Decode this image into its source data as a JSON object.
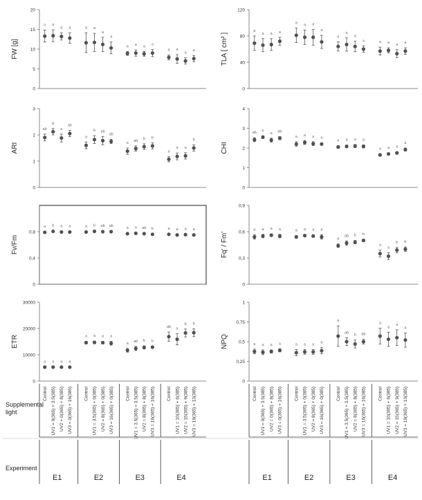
{
  "colors": {
    "marker": "#505050",
    "errorbar": "#555555",
    "letters": "#666666",
    "axis": "#888888",
    "frame": "#444444"
  },
  "side_label": "Supplemental light",
  "experiment_label": "Experiment",
  "experiments": [
    "E1",
    "E2",
    "E3",
    "E4"
  ],
  "conditions": [
    [
      "Control",
      "UV1 = 0(365) + 3.5(385)",
      "UV2 = 0(365) + 8(385)",
      "UV3 = 0(365) + 16(385)"
    ],
    [
      "Control",
      "UV1 = 3.5(365) + 0(385)",
      "UV2 = 8(365) + 0(385)",
      "UV3 = 16(365) + 0(385)"
    ],
    [
      "Control",
      "UV1 = 3.5(365) + 3.5(385)",
      "UV2 = 8(365) + 8(385)",
      "UV3 = 16(365) + 16(385)"
    ],
    [
      "Control",
      "UV1 = 10(365) + 6(385)",
      "UV2 = 15(365) + 9(385)",
      "UV3 = 19(365) + 13(385)"
    ]
  ],
  "chart_data": [
    {
      "type": "scatter",
      "ylabel": "FW [g]",
      "ylim": [
        0,
        20
      ],
      "ticks": [
        "0",
        "5",
        "10",
        "15",
        "20"
      ],
      "values": [
        [
          13.3,
          13.4,
          13.2,
          12.8
        ],
        [
          11.6,
          11.7,
          11.2,
          10.3
        ],
        [
          8.9,
          9.0,
          8.8,
          9.0
        ],
        [
          7.9,
          7.5,
          7.0,
          7.6
        ]
      ],
      "errors": [
        [
          1.5,
          1.5,
          0.9,
          1.3
        ],
        [
          2.5,
          2.3,
          1.8,
          1.5
        ],
        [
          0.5,
          0.8,
          0.6,
          0.9
        ],
        [
          0.6,
          1.1,
          0.8,
          0.8
        ]
      ],
      "letters": [
        [
          "a",
          "a",
          "a",
          "a"
        ],
        [
          "a",
          "a",
          "a",
          "a"
        ],
        [
          "a",
          "a",
          "a",
          "a"
        ],
        [
          "a",
          "a",
          "a",
          "a"
        ]
      ]
    },
    {
      "type": "scatter",
      "ylabel": "TLA [ cm² ]",
      "ylim": [
        0,
        120
      ],
      "ticks": [
        "0",
        "40",
        "80",
        "120"
      ],
      "values": [
        [
          69,
          66,
          67,
          72
        ],
        [
          81,
          78,
          78,
          71
        ],
        [
          64,
          67,
          64,
          60
        ],
        [
          57,
          58,
          53,
          57
        ]
      ],
      "errors": [
        [
          11,
          10,
          9,
          6
        ],
        [
          11,
          11,
          12,
          10
        ],
        [
          7,
          10,
          8,
          5
        ],
        [
          6,
          4,
          6,
          5
        ]
      ],
      "letters": [
        [
          "a",
          "a",
          "a",
          "a"
        ],
        [
          "a",
          "a",
          "a",
          "a"
        ],
        [
          "a",
          "a",
          "a",
          "a"
        ],
        [
          "a",
          "a",
          "a",
          "a"
        ]
      ]
    },
    {
      "type": "scatter",
      "ylabel": "ARI",
      "ylim": [
        0,
        3
      ],
      "ticks": [
        "0",
        "1",
        "2",
        "3"
      ],
      "values": [
        [
          1.9,
          2.12,
          1.88,
          2.05
        ],
        [
          1.6,
          1.82,
          1.78,
          1.75
        ],
        [
          1.38,
          1.48,
          1.55,
          1.58
        ],
        [
          1.07,
          1.18,
          1.2,
          1.5
        ]
      ],
      "errors": [
        [
          0.13,
          0.12,
          0.15,
          0.12
        ],
        [
          0.13,
          0.15,
          0.16,
          0.08
        ],
        [
          0.12,
          0.1,
          0.11,
          0.12
        ],
        [
          0.1,
          0.13,
          0.12,
          0.12
        ]
      ],
      "letters": [
        [
          "ab",
          "b",
          "a",
          "ab"
        ],
        [
          "a",
          "b",
          "ab",
          "ab"
        ],
        [
          "a",
          "ab",
          "b",
          "b"
        ],
        [
          "a",
          "a",
          "a",
          "b"
        ]
      ]
    },
    {
      "type": "scatter",
      "ylabel": "CHI",
      "ylim": [
        0,
        4
      ],
      "ticks": [
        "0",
        "1",
        "2",
        "3",
        "4"
      ],
      "values": [
        [
          2.42,
          2.55,
          2.4,
          2.5
        ],
        [
          2.2,
          2.28,
          2.22,
          2.2
        ],
        [
          2.05,
          2.08,
          2.1,
          2.08
        ],
        [
          1.65,
          1.7,
          1.75,
          1.92
        ]
      ],
      "errors": [
        [
          0.1,
          0.07,
          0.1,
          0.08
        ],
        [
          0.12,
          0.1,
          0.1,
          0.06
        ],
        [
          0.07,
          0.07,
          0.08,
          0.08
        ],
        [
          0.06,
          0.06,
          0.06,
          0.08
        ]
      ],
      "letters": [
        [
          "ab",
          "b",
          "a",
          "ab"
        ],
        [
          "a",
          "a",
          "a",
          "a"
        ],
        [
          "a",
          "a",
          "a",
          "a"
        ],
        [
          "a",
          "a",
          "a",
          "a"
        ]
      ]
    },
    {
      "type": "scatter",
      "ylabel": "Fv/Fm",
      "ylim": [
        0,
        1.2
      ],
      "ticks": [
        "0",
        "0,4",
        "0,8"
      ],
      "values": [
        [
          0.79,
          0.805,
          0.795,
          0.795
        ],
        [
          0.795,
          0.805,
          0.8,
          0.8
        ],
        [
          0.77,
          0.775,
          0.77,
          0.76
        ],
        [
          0.76,
          0.75,
          0.755,
          0.75
        ]
      ],
      "errors": [
        [
          0.01,
          0.01,
          0.01,
          0.01
        ],
        [
          0.01,
          0.01,
          0.01,
          0.01
        ],
        [
          0.01,
          0.01,
          0.01,
          0.01
        ],
        [
          0.01,
          0.01,
          0.01,
          0.01
        ]
      ],
      "letters": [
        [
          "a",
          "b",
          "a",
          "a"
        ],
        [
          "a",
          "b",
          "ab",
          "ab"
        ],
        [
          "a",
          "a",
          "ab",
          "b"
        ],
        [
          "a",
          "a",
          "a",
          "a"
        ]
      ]
    },
    {
      "type": "scatter",
      "ylabel": "Fq' / Fm'",
      "ylim": [
        0,
        0.9
      ],
      "ticks": [
        "0",
        "0,3",
        "0,6",
        "0,9"
      ],
      "values": [
        [
          0.54,
          0.55,
          0.56,
          0.55
        ],
        [
          0.54,
          0.555,
          0.55,
          0.54
        ],
        [
          0.44,
          0.47,
          0.48,
          0.5
        ],
        [
          0.35,
          0.32,
          0.39,
          0.4
        ]
      ],
      "errors": [
        [
          0.025,
          0.02,
          0.015,
          0.02
        ],
        [
          0.015,
          0.015,
          0.015,
          0.025
        ],
        [
          0.02,
          0.025,
          0.02,
          0.015
        ],
        [
          0.04,
          0.04,
          0.03,
          0.025
        ]
      ],
      "letters": [
        [
          "a",
          "a",
          "a",
          "a"
        ],
        [
          "a",
          "a",
          "a",
          "a"
        ],
        [
          "a",
          "ab",
          "b",
          "b"
        ],
        [
          "a",
          "a",
          "b",
          "b"
        ]
      ]
    },
    {
      "type": "scatter",
      "ylabel": "ETR",
      "ylim": [
        0,
        30000
      ],
      "ticks": [
        "0",
        "10000",
        "20000",
        "30000"
      ],
      "values": [
        [
          5300,
          5300,
          5300,
          5300
        ],
        [
          14600,
          14700,
          14600,
          14400
        ],
        [
          11700,
          12400,
          12800,
          12900
        ],
        [
          16900,
          15900,
          18300,
          18400
        ]
      ],
      "errors": [
        [
          150,
          150,
          150,
          150
        ],
        [
          500,
          500,
          500,
          700
        ],
        [
          700,
          800,
          600,
          400
        ],
        [
          1800,
          2100,
          1500,
          1500
        ]
      ],
      "letters": [
        [
          "a",
          "a",
          "a",
          "a"
        ],
        [
          "a",
          "a",
          "a",
          "a"
        ],
        [
          "a",
          "ab",
          "b",
          "b"
        ],
        [
          "ab",
          "a",
          "b",
          "b"
        ]
      ]
    },
    {
      "type": "scatter",
      "ylabel": "NPQ",
      "ylim": [
        0,
        1
      ],
      "ticks": [
        "0",
        "0,25",
        "0,5",
        "0,75",
        "1"
      ],
      "values": [
        [
          0.375,
          0.365,
          0.375,
          0.39
        ],
        [
          0.36,
          0.37,
          0.37,
          0.385
        ],
        [
          0.57,
          0.5,
          0.47,
          0.5
        ],
        [
          0.57,
          0.53,
          0.55,
          0.52
        ]
      ],
      "errors": [
        [
          0.03,
          0.03,
          0.02,
          0.02
        ],
        [
          0.04,
          0.03,
          0.03,
          0.04
        ],
        [
          0.13,
          0.05,
          0.05,
          0.03
        ],
        [
          0.1,
          0.09,
          0.1,
          0.09
        ]
      ],
      "letters": [
        [
          "a",
          "a",
          "a",
          "a"
        ],
        [
          "a",
          "a",
          "a",
          "a"
        ],
        [
          "a",
          "ab",
          "b",
          "ab"
        ],
        [
          "a",
          "a",
          "a",
          "a"
        ]
      ]
    }
  ]
}
